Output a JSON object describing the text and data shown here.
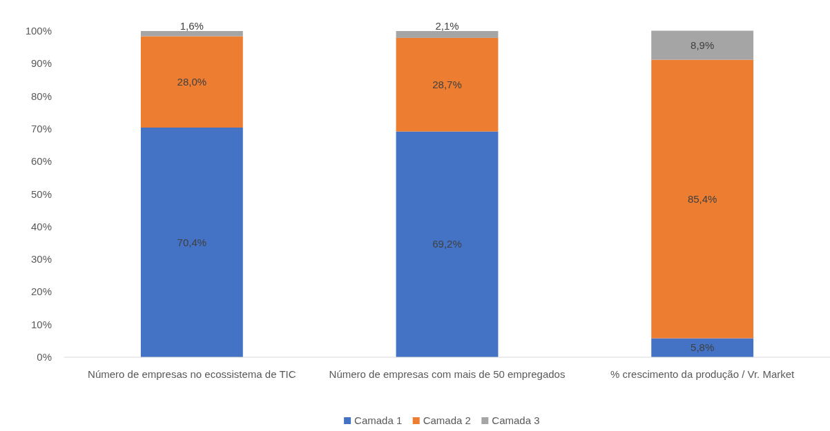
{
  "chart_data": {
    "type": "bar",
    "stacked": true,
    "categories": [
      "Número de empresas no ecossistema de TIC",
      "Número de empresas com mais de 50 empregados",
      "% crescimento da produção / Vr. Market"
    ],
    "series": [
      {
        "name": "Camada 1",
        "color": "#4472c4",
        "values": [
          70.4,
          69.2,
          5.8
        ],
        "value_labels": [
          "70,4%",
          "69,2%",
          "5,8%"
        ]
      },
      {
        "name": "Camada 2",
        "color": "#ed7d31",
        "values": [
          28.0,
          28.7,
          85.4
        ],
        "value_labels": [
          "28,0%",
          "28,7%",
          "85,4%"
        ]
      },
      {
        "name": "Camada 3",
        "color": "#a5a5a5",
        "values": [
          1.6,
          2.1,
          8.9
        ],
        "value_labels": [
          "1,6%",
          "2,1%",
          "8,9%"
        ]
      }
    ],
    "ylim": [
      0,
      100
    ],
    "yticks": [
      {
        "value": 0,
        "label": "0%"
      },
      {
        "value": 10,
        "label": "10%"
      },
      {
        "value": 20,
        "label": "20%"
      },
      {
        "value": 30,
        "label": "30%"
      },
      {
        "value": 40,
        "label": "40%"
      },
      {
        "value": 50,
        "label": "50%"
      },
      {
        "value": 60,
        "label": "60%"
      },
      {
        "value": 70,
        "label": "70%"
      },
      {
        "value": 80,
        "label": "80%"
      },
      {
        "value": 90,
        "label": "90%"
      },
      {
        "value": 100,
        "label": "100%"
      }
    ],
    "grid": false,
    "legend": "bottom"
  }
}
